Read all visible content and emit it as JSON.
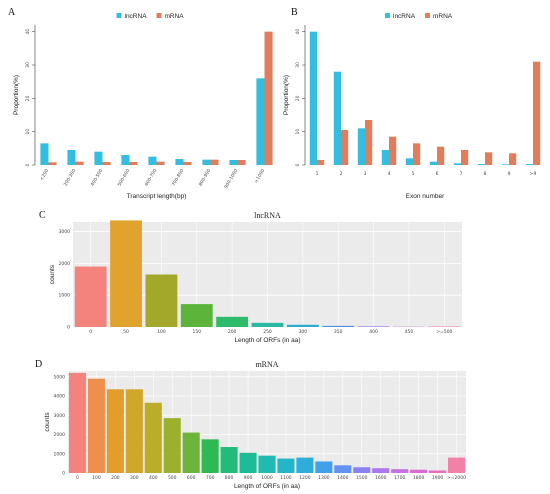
{
  "chart_data": [
    {
      "panel": "A",
      "type": "bar",
      "xlabel": "Transcript length(bp)",
      "ylabel": "Proportion(%)",
      "ylim": [
        0,
        42
      ],
      "yticks": [
        0,
        10,
        20,
        30,
        40
      ],
      "categories": [
        "<200",
        "200-300",
        "400-500",
        "500-600",
        "600-700",
        "700-800",
        "800-900",
        "900-1000",
        ">1000"
      ],
      "series": [
        {
          "name": "lncRNA",
          "color": "#33bde0",
          "values": [
            6.5,
            4.5,
            4,
            3,
            2.5,
            1.8,
            1.6,
            1.5,
            26
          ]
        },
        {
          "name": "mRNA",
          "color": "#e07d5a",
          "values": [
            0.8,
            1.0,
            0.9,
            0.9,
            1.0,
            0.9,
            1.6,
            1.5,
            40
          ]
        }
      ],
      "legend": "top-center"
    },
    {
      "panel": "B",
      "type": "bar",
      "xlabel": "Exon number",
      "ylabel": "Proportion(%)",
      "ylim": [
        0,
        42
      ],
      "yticks": [
        0,
        10,
        20,
        30,
        40
      ],
      "categories": [
        "1",
        "2",
        "3",
        "4",
        "5",
        "6",
        "7",
        "8",
        "9",
        ">9"
      ],
      "series": [
        {
          "name": "lncRNA",
          "color": "#33bde0",
          "values": [
            40,
            28,
            11,
            4.5,
            2,
            1,
            0.5,
            0.3,
            0.2,
            0.3
          ]
        },
        {
          "name": "mRNA",
          "color": "#e07d5a",
          "values": [
            1.5,
            10.5,
            13.5,
            8.5,
            6.5,
            5.5,
            4.5,
            3.8,
            3.5,
            31
          ]
        }
      ],
      "legend": "top-center"
    },
    {
      "panel": "C",
      "type": "bar",
      "title": "lncRNA",
      "xlabel": "Length of ORFs (in aa)",
      "ylabel": "counts",
      "ylim": [
        0,
        3300
      ],
      "yticks": [
        0,
        1000,
        2000,
        3000
      ],
      "categories": [
        "0",
        "50",
        "100",
        "150",
        "200",
        "250",
        "300",
        "350",
        "400",
        "450",
        ">=500"
      ],
      "values": [
        1900,
        3350,
        1650,
        720,
        320,
        130,
        70,
        35,
        20,
        10,
        15
      ],
      "colors": [
        "#f4837d",
        "#e0a32e",
        "#a3a82a",
        "#5db43b",
        "#2fbb6c",
        "#2ab9a5",
        "#2daacf",
        "#4b8ee8",
        "#9b7cec",
        "#d373d9",
        "#f06fac"
      ],
      "grid": true
    },
    {
      "panel": "D",
      "type": "bar",
      "title": "mRNA",
      "xlabel": "Length of ORFs (in aa)",
      "ylabel": "counts",
      "ylim": [
        0,
        5300
      ],
      "yticks": [
        0,
        1000,
        2000,
        3000,
        4000,
        5000
      ],
      "categories": [
        "0",
        "100",
        "200",
        "300",
        "400",
        "500",
        "600",
        "700",
        "800",
        "900",
        "1000",
        "1100",
        "1200",
        "1300",
        "1400",
        "1500",
        "1600",
        "1700",
        "1800",
        "1900",
        ">=2000"
      ],
      "values": [
        5200,
        4900,
        4350,
        4350,
        3650,
        2850,
        2100,
        1750,
        1350,
        1050,
        900,
        750,
        800,
        600,
        400,
        300,
        250,
        200,
        170,
        130,
        800
      ],
      "colors": [
        "#f4837d",
        "#ee8f4c",
        "#e29d2c",
        "#d0a72a",
        "#b9ad29",
        "#9bb12d",
        "#6bb53c",
        "#2fb954",
        "#22bb7a",
        "#1dbc99",
        "#1fbbb3",
        "#24b6c8",
        "#2eaddb",
        "#41a0e9",
        "#6591f0",
        "#8c81f1",
        "#ad77ed",
        "#c86fe2",
        "#dc6bd0",
        "#ea6cbc",
        "#f281a8"
      ],
      "grid": true
    }
  ],
  "labels": {
    "panel_a": "A",
    "panel_b": "B",
    "panel_c": "C",
    "panel_d": "D"
  }
}
